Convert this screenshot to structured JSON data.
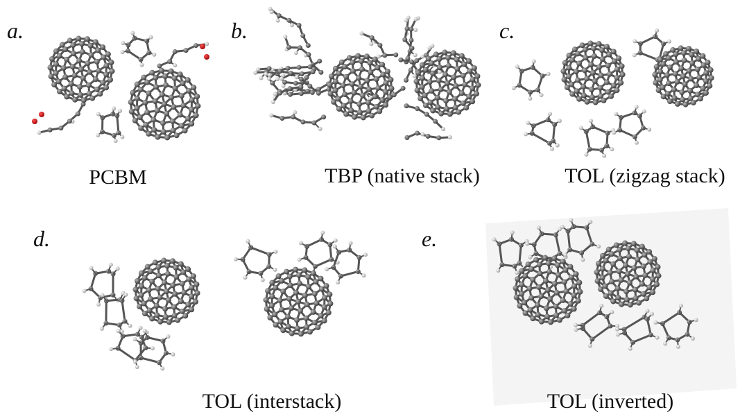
{
  "panels": [
    {
      "label": "a.",
      "caption": "PCBM"
    },
    {
      "label": "b.",
      "caption": "TBP (native stack)"
    },
    {
      "label": "c.",
      "caption": "TOL (zigzag stack)"
    },
    {
      "label": "d.",
      "caption": "TOL (interstack)"
    },
    {
      "label": "e.",
      "caption": "TOL (inverted)"
    }
  ]
}
